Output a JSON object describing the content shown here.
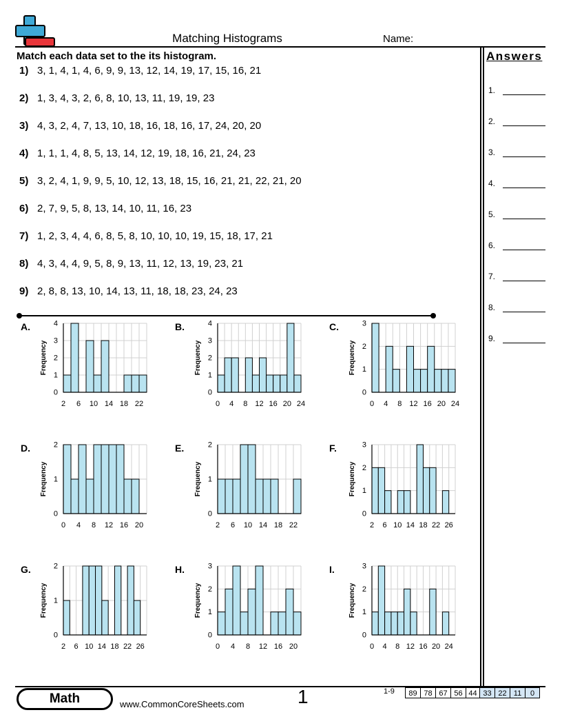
{
  "header": {
    "title": "Matching Histograms",
    "name_label": "Name:",
    "instructions": "Match each data set to the its histogram."
  },
  "answers": {
    "title": "Answers",
    "labels": [
      "1.",
      "2.",
      "3.",
      "4.",
      "5.",
      "6.",
      "7.",
      "8.",
      "9."
    ]
  },
  "problems": [
    {
      "num": "1)",
      "data": "3, 1, 4, 1, 4, 6, 9, 9, 13, 12, 14, 19, 17, 15, 16, 21"
    },
    {
      "num": "2)",
      "data": "1, 3, 4, 3, 2, 6, 8, 10, 13, 11, 19, 19, 23"
    },
    {
      "num": "3)",
      "data": "4, 3, 2, 4, 7, 13, 10, 18, 16, 18, 16, 17, 24, 20, 20"
    },
    {
      "num": "4)",
      "data": "1, 1, 1, 4, 8, 5, 13, 14, 12, 19, 18, 16, 21, 24, 23"
    },
    {
      "num": "5)",
      "data": "3, 2, 4, 1, 9, 9, 5, 10, 12, 13, 18, 15, 16, 21, 21, 22, 21, 20"
    },
    {
      "num": "6)",
      "data": "2, 7, 9, 5, 8, 13, 14, 10, 11, 16, 23"
    },
    {
      "num": "7)",
      "data": "1, 2, 3, 4, 4, 6, 8, 5, 8, 10, 10, 10, 19, 15, 18, 17, 21"
    },
    {
      "num": "8)",
      "data": "4, 3, 4, 4, 9, 5, 8, 9, 13, 11, 12, 13, 19, 23, 21"
    },
    {
      "num": "9)",
      "data": "2, 8, 8, 13, 10, 14, 13, 11, 18, 18, 23, 24, 23"
    }
  ],
  "chart_data": [
    {
      "type": "bar",
      "label": "A.",
      "ylabel": "Frequency",
      "xmin": 2,
      "xmax": 24,
      "binwidth": 2,
      "ymax": 4,
      "yticks": [
        "0",
        "1",
        "2",
        "3",
        "4"
      ],
      "xticks": [
        "2",
        "6",
        "10",
        "14",
        "18",
        "22"
      ],
      "values": [
        1,
        4,
        0,
        3,
        1,
        3,
        0,
        0,
        1,
        1,
        1
      ]
    },
    {
      "type": "bar",
      "label": "B.",
      "ylabel": "Frequency",
      "xmin": 0,
      "xmax": 24,
      "binwidth": 2,
      "ymax": 4,
      "yticks": [
        "0",
        "1",
        "2",
        "3",
        "4"
      ],
      "xticks": [
        "0",
        "4",
        "8",
        "12",
        "16",
        "20",
        "24"
      ],
      "values": [
        1,
        2,
        2,
        0,
        2,
        1,
        2,
        1,
        1,
        1,
        4,
        1
      ]
    },
    {
      "type": "bar",
      "label": "C.",
      "ylabel": "Frequency",
      "xmin": 0,
      "xmax": 24,
      "binwidth": 2,
      "ymax": 3,
      "yticks": [
        "0",
        "1",
        "2",
        "3"
      ],
      "xticks": [
        "0",
        "4",
        "8",
        "12",
        "16",
        "20",
        "24"
      ],
      "values": [
        3,
        0,
        2,
        1,
        0,
        2,
        1,
        1,
        2,
        1,
        1,
        1
      ]
    },
    {
      "type": "bar",
      "label": "D.",
      "ylabel": "Frequency",
      "xmin": 0,
      "xmax": 22,
      "binwidth": 2,
      "ymax": 2,
      "yticks": [
        "0",
        "1",
        "2"
      ],
      "xticks": [
        "0",
        "4",
        "8",
        "12",
        "16",
        "20"
      ],
      "values": [
        2,
        1,
        2,
        1,
        2,
        2,
        2,
        2,
        1,
        1
      ]
    },
    {
      "type": "bar",
      "label": "E.",
      "ylabel": "Frequency",
      "xmin": 2,
      "xmax": 24,
      "binwidth": 2,
      "ymax": 2,
      "yticks": [
        "0",
        "1",
        "2"
      ],
      "xticks": [
        "2",
        "6",
        "10",
        "14",
        "18",
        "22"
      ],
      "values": [
        1,
        1,
        1,
        2,
        2,
        1,
        1,
        1,
        0,
        0,
        1
      ]
    },
    {
      "type": "bar",
      "label": "F.",
      "ylabel": "Frequency",
      "xmin": 2,
      "xmax": 28,
      "binwidth": 2,
      "ymax": 3,
      "yticks": [
        "0",
        "1",
        "2",
        "3"
      ],
      "xticks": [
        "2",
        "6",
        "10",
        "14",
        "18",
        "22",
        "26"
      ],
      "values": [
        2,
        2,
        1,
        0,
        1,
        1,
        0,
        3,
        2,
        2,
        0,
        1,
        0
      ]
    },
    {
      "type": "bar",
      "label": "G.",
      "ylabel": "Frequency",
      "xmin": 2,
      "xmax": 28,
      "binwidth": 2,
      "ymax": 2,
      "yticks": [
        "0",
        "1",
        "2"
      ],
      "xticks": [
        "2",
        "6",
        "10",
        "14",
        "18",
        "22",
        "26"
      ],
      "values": [
        1,
        0,
        0,
        2,
        2,
        2,
        1,
        0,
        2,
        0,
        2,
        1,
        0
      ]
    },
    {
      "type": "bar",
      "label": "H.",
      "ylabel": "Frequency",
      "xmin": 0,
      "xmax": 22,
      "binwidth": 2,
      "ymax": 3,
      "yticks": [
        "0",
        "1",
        "2",
        "3"
      ],
      "xticks": [
        "0",
        "4",
        "8",
        "12",
        "16",
        "20"
      ],
      "values": [
        1,
        2,
        3,
        1,
        2,
        3,
        0,
        1,
        1,
        2,
        1
      ]
    },
    {
      "type": "bar",
      "label": "I.",
      "ylabel": "Frequency",
      "xmin": 0,
      "xmax": 26,
      "binwidth": 2,
      "ymax": 3,
      "yticks": [
        "0",
        "1",
        "2",
        "3"
      ],
      "xticks": [
        "0",
        "4",
        "8",
        "12",
        "16",
        "20",
        "24"
      ],
      "values": [
        1,
        3,
        1,
        1,
        1,
        2,
        1,
        0,
        0,
        2,
        0,
        1,
        0
      ]
    }
  ],
  "footer": {
    "subject": "Math",
    "site": "www.CommonCoreSheets.com",
    "page": "1",
    "score_label": "1-9",
    "scores": [
      "89",
      "78",
      "67",
      "56",
      "44",
      "33",
      "22",
      "11",
      "0"
    ]
  },
  "colors": {
    "bar_fill": "#b9e3f0",
    "logo_blue": "#3fa9d6",
    "logo_red": "#e8353a",
    "score_highlight": "#d4e6f5"
  }
}
